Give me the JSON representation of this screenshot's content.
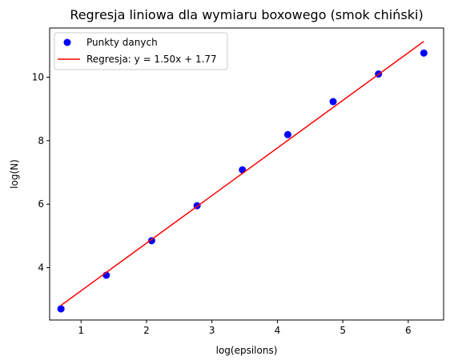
{
  "chart_data": {
    "type": "scatter",
    "title": "Regresja liniowa dla wymiaru boxowego (smok chiński)",
    "xlabel": "log(epsilons)",
    "ylabel": "log(N)",
    "xlim": [
      0.52,
      6.54
    ],
    "ylim": [
      2.35,
      11.55
    ],
    "x_ticks": [
      1,
      2,
      3,
      4,
      5,
      6
    ],
    "y_ticks": [
      4,
      6,
      8,
      10
    ],
    "grid": false,
    "legend_position": "top-left",
    "series": [
      {
        "name": "Punkty danych",
        "kind": "scatter",
        "color": "#0000ff",
        "x": [
          0.693,
          1.386,
          2.079,
          2.773,
          3.466,
          4.159,
          4.852,
          5.545,
          6.238
        ],
        "y": [
          2.7,
          3.76,
          4.85,
          5.95,
          7.08,
          8.19,
          9.23,
          10.1,
          10.76
        ]
      },
      {
        "name": "Regresja: y = 1.50x + 1.77",
        "kind": "line",
        "color": "#ff0000",
        "slope": 1.5,
        "intercept": 1.77,
        "x_range": [
          0.693,
          6.238
        ]
      }
    ]
  }
}
